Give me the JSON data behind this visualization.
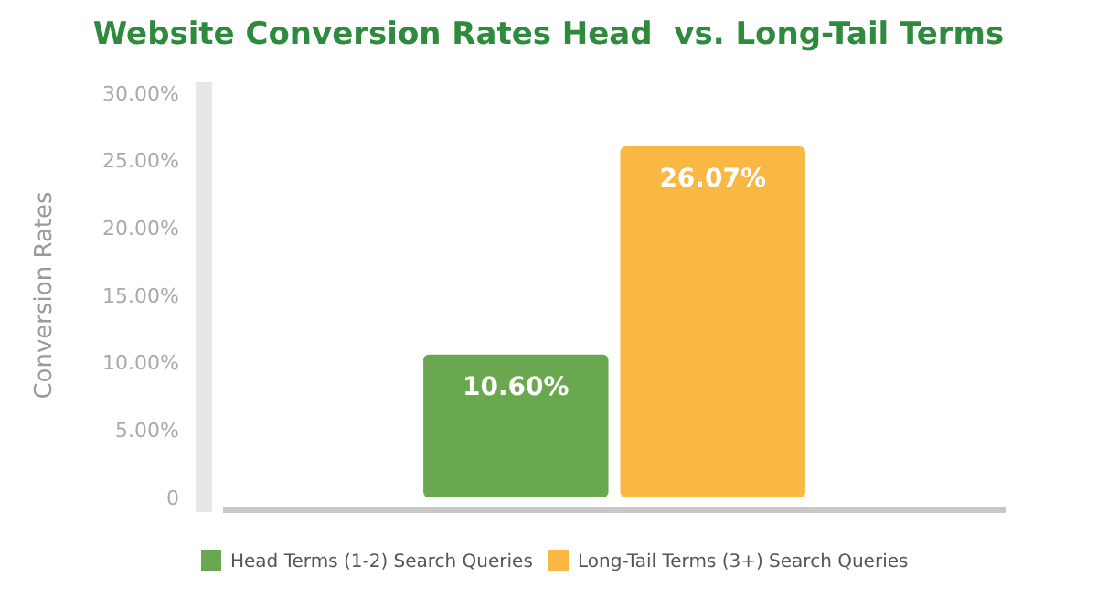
{
  "chart_data": {
    "type": "bar",
    "title": "Website Conversion Rates Head  vs. Long-Tail Terms",
    "ylabel": "Conversion Rates",
    "categories": [
      null
    ],
    "series": [
      {
        "name": "Head Terms (1-2) Search Queries",
        "color": "#6aa84f",
        "values": [
          10.6
        ],
        "value_labels": [
          "10.60%"
        ]
      },
      {
        "name": "Long-Tail Terms (3+) Search Queries",
        "color": "#f9b844",
        "values": [
          26.07
        ],
        "value_labels": [
          "26.07%"
        ]
      }
    ],
    "ylim": [
      0,
      30
    ],
    "yticks": [
      0,
      {
        "value": 5,
        "label": "5.00%"
      },
      {
        "value": 10,
        "label": "10.00%"
      },
      {
        "value": 15,
        "label": "15.00%"
      },
      {
        "value": 20,
        "label": "20.00%"
      },
      {
        "value": 25,
        "label": "25.00%"
      },
      {
        "value": 30,
        "label": "30.00%"
      }
    ],
    "grid": false,
    "legend": "bottom"
  }
}
